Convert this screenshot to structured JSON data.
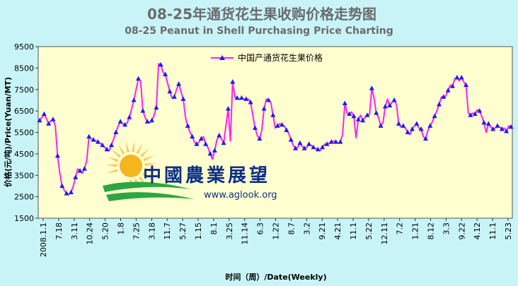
{
  "header": {
    "title": "08-25年通货花生果收购价格走势图",
    "subtitle": "08-25 Peanut in Shell Purchasing Price Charting"
  },
  "watermark": {
    "name": "中國農業展望",
    "url": "www.aglook.org"
  },
  "colors": {
    "background": "#c8f4f8",
    "plot_background": "#ffffd0",
    "line": "#ff22ee",
    "marker": "#1c1cf0"
  },
  "chart_data": {
    "type": "line",
    "title": "08-25年通货花生果收购价格走势图",
    "subtitle": "08-25 Peanut in Shell Purchasing Price Charting",
    "ylabel": "价格(元/吨)/Price(Yuan/MT)",
    "xlabel": "时间（周）/Date(Weekly)",
    "ylim": [
      1500,
      9500
    ],
    "yticks": [
      1500,
      2500,
      3500,
      4500,
      5500,
      6500,
      7500,
      8500,
      9500
    ],
    "xticks": [
      "2008.1.1",
      "7.18",
      "3.11",
      "10.24",
      "5.20",
      "1.8",
      "7.25",
      "3.18",
      "11.7",
      "5.27",
      "1.15",
      "8.1",
      "3.25",
      "11.14",
      "6.3",
      "1.22",
      "8.7",
      "3.2",
      "9.21",
      "4.21",
      "11.1",
      "5.22",
      "12.11",
      "7.2",
      "1.21",
      "8.12",
      "3.3",
      "9.22",
      "4.12",
      "11.1",
      "5.23"
    ],
    "legend": "top-center",
    "grid": false,
    "series": [
      {
        "name": "中国产通货花生果价格",
        "values": [
          6050,
          6200,
          6350,
          6150,
          5900,
          6050,
          6100,
          5800,
          4400,
          3600,
          3000,
          2800,
          2650,
          2600,
          2700,
          3000,
          3400,
          3800,
          3700,
          3600,
          3800,
          4200,
          5300,
          5200,
          5150,
          5100,
          5050,
          5000,
          4900,
          4800,
          4700,
          4650,
          4900,
          5200,
          5500,
          5800,
          6000,
          5900,
          5850,
          5950,
          6200,
          6600,
          7000,
          7500,
          8000,
          7900,
          6500,
          6200,
          6000,
          5950,
          6050,
          6300,
          6650,
          8700,
          8650,
          8300,
          8200,
          7800,
          7400,
          7100,
          7150,
          7500,
          7750,
          7400,
          7050,
          6200,
          5800,
          5500,
          5300,
          5050,
          4950,
          5050,
          5200,
          5300,
          4950,
          4800,
          4500,
          4250,
          4650,
          5150,
          5350,
          5200,
          5000,
          5800,
          6600,
          5100,
          7850,
          7150,
          7100,
          7050,
          7100,
          7050,
          7050,
          7050,
          6900,
          6300,
          5700,
          5350,
          5200,
          5600,
          6600,
          7050,
          7000,
          6900,
          6300,
          5700,
          5800,
          5900,
          5850,
          5800,
          5600,
          5450,
          5150,
          4900,
          4750,
          4800,
          5000,
          4850,
          4750,
          4800,
          4950,
          4900,
          4800,
          4750,
          4700,
          4650,
          4800,
          4950,
          4950,
          5000,
          5050,
          5100,
          5050,
          5000,
          5050,
          5400,
          6850,
          6400,
          6350,
          6450,
          6250,
          5250,
          6100,
          6300,
          6050,
          6200,
          6300,
          6350,
          7550,
          7100,
          6400,
          6200,
          5800,
          5950,
          6700,
          7050,
          6750,
          6900,
          7000,
          6800,
          5900,
          5750,
          5800,
          5700,
          5500,
          5400,
          5650,
          5800,
          5900,
          5700,
          5650,
          5300,
          5200,
          5600,
          5800,
          6000,
          6250,
          6500,
          6800,
          7150,
          7150,
          7200,
          7450,
          7700,
          7650,
          8000,
          8050,
          7900,
          8050,
          7850,
          7700,
          6400,
          6300,
          6400,
          6350,
          6550,
          6500,
          6250,
          5950,
          5500,
          5900,
          5750,
          5650,
          5700,
          5800,
          5750,
          5650,
          5700,
          5550,
          5800,
          5750
        ]
      }
    ]
  }
}
